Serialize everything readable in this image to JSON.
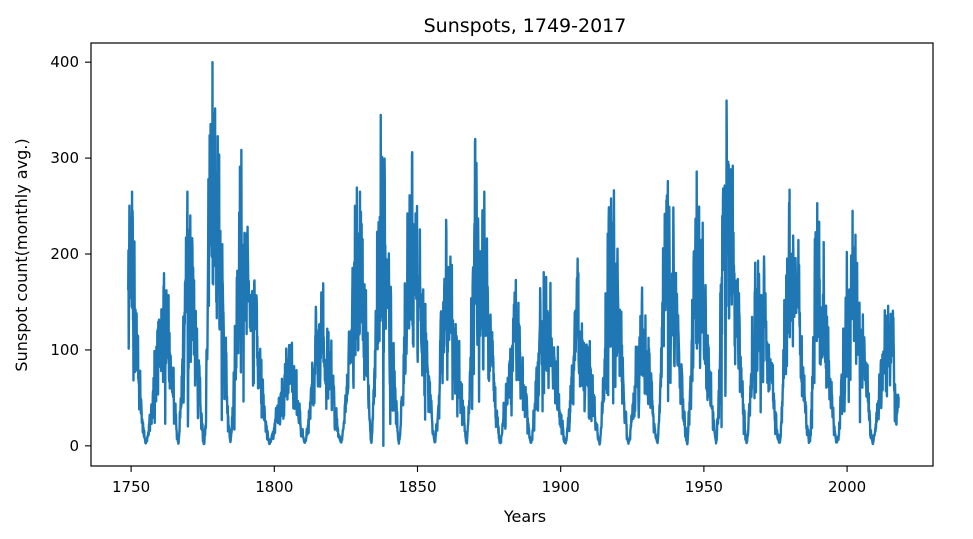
{
  "chart_data": {
    "type": "line",
    "title": "Sunspots, 1749-2017",
    "xlabel": "Years",
    "ylabel": "Sunspot count(monthly avg.)",
    "xlim": [
      1736,
      2030
    ],
    "ylim": [
      -21,
      420
    ],
    "x_ticks": [
      1750,
      1800,
      1850,
      1900,
      1950,
      2000
    ],
    "y_ticks": [
      0,
      100,
      200,
      300,
      400
    ],
    "grid": false,
    "legend": "none",
    "line_color": "#1f77b4",
    "sampling": "monthly",
    "x_start": 1749,
    "x_end": 2018,
    "cycle_minima": [
      1755.2,
      1766.5,
      1775.5,
      1784.7,
      1798.3,
      1810.6,
      1823.3,
      1833.9,
      1843.5,
      1856.0,
      1867.2,
      1878.9,
      1889.6,
      1901.7,
      1913.6,
      1923.6,
      1933.8,
      1944.2,
      1954.3,
      1964.9,
      1976.5,
      1986.8,
      1996.4,
      2008.9,
      2019.9
    ],
    "cycle_maxima": [
      1750.3,
      1761.5,
      1769.7,
      1778.4,
      1788.1,
      1805.2,
      1816.4,
      1829.9,
      1837.2,
      1848.1,
      1860.1,
      1870.6,
      1883.9,
      1894.1,
      1906.2,
      1917.6,
      1928.4,
      1937.4,
      1947.5,
      1957.9,
      1968.9,
      1979.9,
      1989.6,
      2001.9,
      2014.3
    ],
    "cycle_peak_values": [
      265,
      180,
      265,
      400,
      290,
      105,
      160,
      265,
      345,
      302,
      222,
      295,
      160,
      181,
      180,
      258,
      165,
      276,
      286,
      360,
      193,
      267,
      253,
      245,
      146
    ],
    "series": [
      {
        "values_description": "monthly mean sunspot number",
        "points": []
      }
    ]
  }
}
